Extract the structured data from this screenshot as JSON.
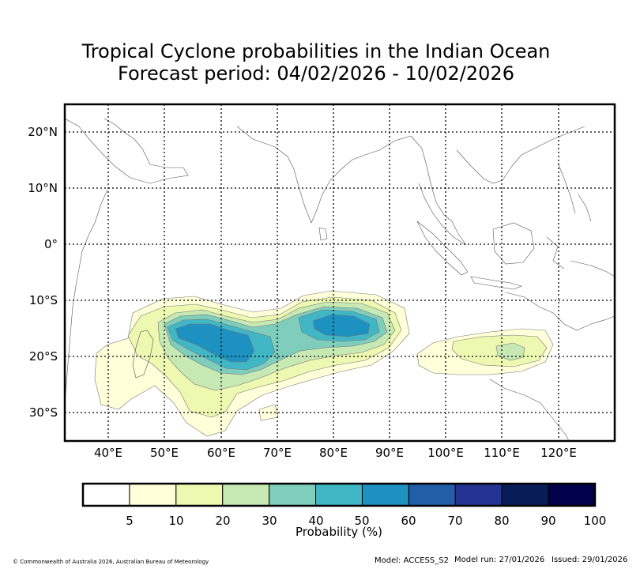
{
  "title": {
    "line1": "Tropical Cyclone probabilities in the Indian Ocean",
    "line2": "Forecast period: 04/02/2026 - 10/02/2026"
  },
  "map": {
    "lon_labels": [
      "40°E",
      "50°E",
      "60°E",
      "70°E",
      "80°E",
      "90°E",
      "100°E",
      "110°E",
      "120°E"
    ],
    "lat_labels": [
      "20°N",
      "10°N",
      "0°",
      "10°S",
      "20°S",
      "30°S"
    ],
    "lon_range": [
      32,
      130
    ],
    "lat_range": [
      -35,
      25
    ],
    "regions": [
      {
        "name": "South Indian Ocean band",
        "level_percent": 5,
        "color": "#ffffd9"
      },
      {
        "name": "Central core",
        "level_percent": 20,
        "color": "#c7e9b4"
      },
      {
        "name": "Western maximum near 60°E 16°S",
        "level_percent": 50,
        "color": "#1d91c0"
      },
      {
        "name": "Eastern maximum near 83°E 13°S",
        "level_percent": 50,
        "color": "#1d91c0"
      },
      {
        "name": "Australian north-west coast",
        "level_percent": 20,
        "color": "#c7e9b4"
      }
    ]
  },
  "legend": {
    "title": "Probability (%)",
    "bins": [
      {
        "color": "#ffffff"
      },
      {
        "color": "#ffffd9"
      },
      {
        "color": "#edf8b1"
      },
      {
        "color": "#c7e9b4"
      },
      {
        "color": "#7fcdbb"
      },
      {
        "color": "#41b6c4"
      },
      {
        "color": "#1d91c0"
      },
      {
        "color": "#225ea8"
      },
      {
        "color": "#253494"
      },
      {
        "color": "#081d58"
      },
      {
        "color": "#00004b"
      }
    ],
    "labels": [
      "5",
      "10",
      "20",
      "30",
      "40",
      "50",
      "60",
      "70",
      "80",
      "90",
      "100"
    ]
  },
  "footer": {
    "copyright": "© Commonwealth of Australia 2026, Australian Bureau of Meteorology",
    "model": "Model: ACCESS_S2",
    "run": "Model run: 27/01/2026",
    "issued": "Issued: 29/01/2026"
  }
}
